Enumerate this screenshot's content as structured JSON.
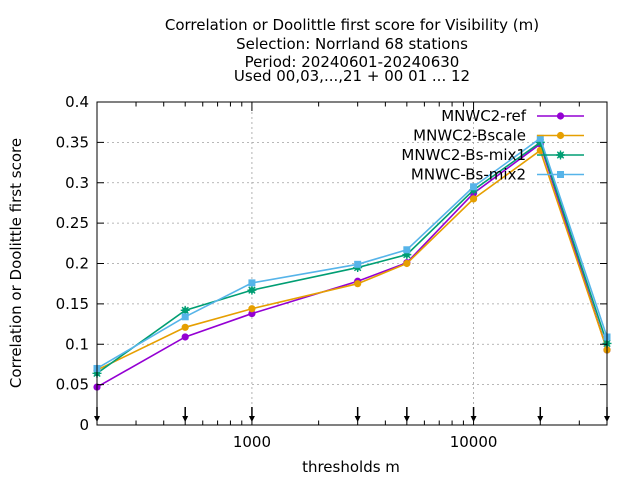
{
  "chart_data": {
    "type": "line",
    "title_lines": [
      "Correlation or Doolittle first score  for Visibility (m)",
      "Selection: Norrland     68 stations",
      "Period: 20240601-20240630",
      "Used 00,03,...,21 + 00 01 ... 12"
    ],
    "xlabel": "thresholds m",
    "ylabel": "Correlation or Doolittle first score",
    "x_scale": "log",
    "xlim": [
      200,
      40000
    ],
    "ylim": [
      0,
      0.4
    ],
    "x_ticks": [
      1000,
      10000
    ],
    "x_tick_labels": [
      "1000",
      "10000"
    ],
    "y_ticks": [
      0,
      0.05,
      0.1,
      0.15,
      0.2,
      0.25,
      0.3,
      0.35,
      0.4
    ],
    "y_tick_labels": [
      "0",
      "0.05",
      "0.1",
      "0.15",
      "0.2",
      "0.25",
      "0.3",
      "0.35",
      "0.4"
    ],
    "threshold_markers": [
      200,
      500,
      1000,
      3000,
      5000,
      10000,
      20000,
      40000
    ],
    "grid": true,
    "legend_position": "top-right",
    "x": [
      200,
      500,
      1000,
      3000,
      5000,
      10000,
      20000,
      40000
    ],
    "series": [
      {
        "name": "MNWC2-ref",
        "color": "#9400d3",
        "marker": "circle",
        "values": [
          0.047,
          0.109,
          0.138,
          0.178,
          0.201,
          0.287,
          0.348,
          0.093
        ]
      },
      {
        "name": "MNWC2-Bscale",
        "color": "#e69f00",
        "marker": "circle",
        "values": [
          0.068,
          0.121,
          0.144,
          0.175,
          0.2,
          0.28,
          0.34,
          0.093
        ]
      },
      {
        "name": "MNWC2-Bs-mix1",
        "color": "#009e73",
        "marker": "star",
        "values": [
          0.064,
          0.142,
          0.167,
          0.195,
          0.211,
          0.291,
          0.35,
          0.101
        ]
      },
      {
        "name": "MNWC-Bs-mix2",
        "color": "#56b4e9",
        "marker": "square",
        "values": [
          0.07,
          0.134,
          0.176,
          0.199,
          0.217,
          0.295,
          0.355,
          0.109
        ]
      }
    ]
  }
}
